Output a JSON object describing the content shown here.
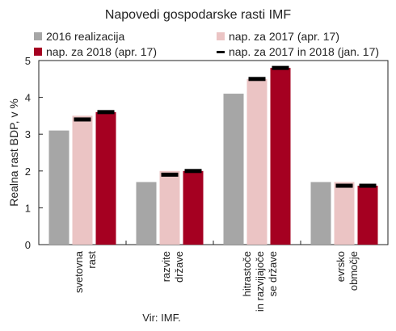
{
  "chart_data": {
    "type": "bar",
    "title": "Napovedi gospodarske rasti IMF",
    "ylabel": "Realna rast BDP, v %",
    "ylim": [
      0,
      5
    ],
    "yticks": [
      "0",
      "1",
      "2",
      "3",
      "4",
      "5"
    ],
    "categories": [
      [
        "svetovna",
        "rast"
      ],
      [
        "razvite",
        "države"
      ],
      [
        "hitrastoče",
        "in razvijajoče",
        "se države"
      ],
      [
        "evrsko",
        "območje"
      ]
    ],
    "series": [
      {
        "name": "2016 realizacija",
        "color": "#a6a6a6",
        "values": [
          3.1,
          1.7,
          4.1,
          1.7
        ]
      },
      {
        "name": "nap. za 2017 (apr. 17)",
        "color": "#ebc4c4",
        "values": [
          3.5,
          2.0,
          4.5,
          1.7
        ]
      },
      {
        "name": "nap. za 2018 (apr. 17)",
        "color": "#a50021",
        "values": [
          3.6,
          2.0,
          4.8,
          1.6
        ]
      }
    ],
    "markers": {
      "name": "nap. za 2017 in 2018 (jan. 17)",
      "color": "#000000",
      "values": [
        [
          3.4,
          3.6
        ],
        [
          1.9,
          2.0
        ],
        [
          4.5,
          4.8
        ],
        [
          1.6,
          1.6
        ]
      ]
    },
    "legend": "top, two columns",
    "grid": false,
    "source": "Vir: IMF."
  }
}
